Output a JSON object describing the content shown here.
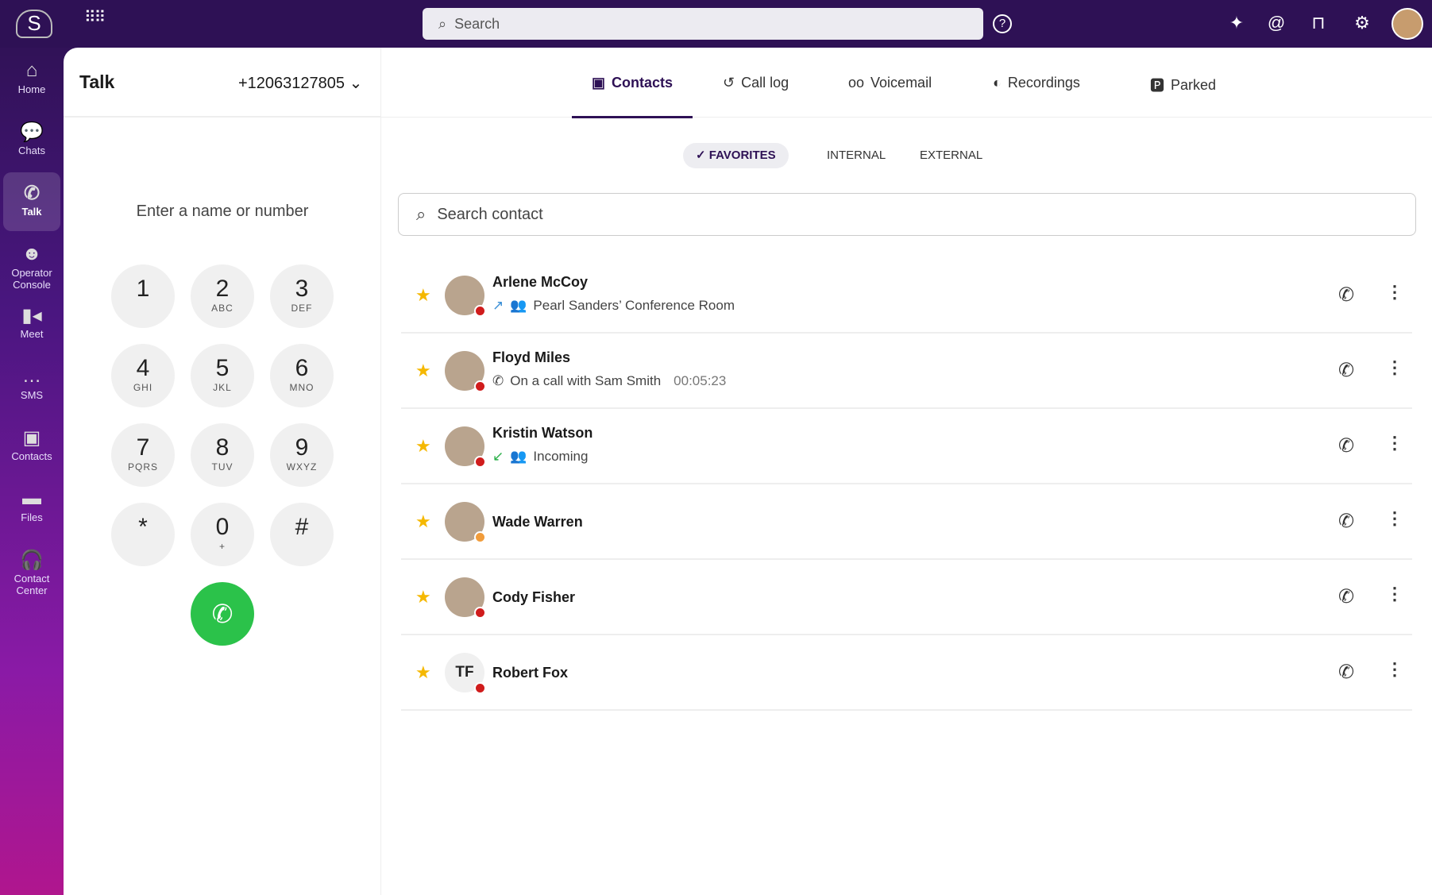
{
  "topbar": {
    "search_placeholder": "Search",
    "help": "?"
  },
  "sidebar": {
    "items": [
      {
        "label": "Home",
        "icon": "home-icon"
      },
      {
        "label": "Chats",
        "icon": "chat-icon"
      },
      {
        "label": "Talk",
        "icon": "phone-icon",
        "active": true
      },
      {
        "label": "Operator Console",
        "icon": "operator-icon"
      },
      {
        "label": "Meet",
        "icon": "video-icon"
      },
      {
        "label": "SMS",
        "icon": "sms-icon"
      },
      {
        "label": "Contacts",
        "icon": "contacts-icon"
      },
      {
        "label": "Files",
        "icon": "folder-icon"
      },
      {
        "label": "Contact Center",
        "icon": "headset-icon"
      }
    ]
  },
  "dialer": {
    "title": "Talk",
    "number": "+12063127805",
    "placeholder": "Enter a name or number",
    "keys": [
      {
        "n": "1",
        "l": ""
      },
      {
        "n": "2",
        "l": "ABC"
      },
      {
        "n": "3",
        "l": "DEF"
      },
      {
        "n": "4",
        "l": "GHI"
      },
      {
        "n": "5",
        "l": "JKL"
      },
      {
        "n": "6",
        "l": "MNO"
      },
      {
        "n": "7",
        "l": "PQRS"
      },
      {
        "n": "8",
        "l": "TUV"
      },
      {
        "n": "9",
        "l": "WXYZ"
      },
      {
        "n": "*",
        "l": ""
      },
      {
        "n": "0",
        "l": "+"
      },
      {
        "n": "#",
        "l": ""
      }
    ]
  },
  "tabs": [
    {
      "label": "Contacts",
      "active": true
    },
    {
      "label": "Call log"
    },
    {
      "label": "Voicemail"
    },
    {
      "label": "Recordings"
    },
    {
      "label": "Parked"
    }
  ],
  "filters": [
    {
      "label": "FAVORITES",
      "active": true
    },
    {
      "label": "INTERNAL"
    },
    {
      "label": "EXTERNAL"
    }
  ],
  "contact_search": {
    "placeholder": "Search contact"
  },
  "contacts": [
    {
      "name": "Arlene McCoy",
      "status": "dnd",
      "sub": "Pearl Sanders’ Conference Room",
      "direction": "outgoing"
    },
    {
      "name": "Floyd Miles",
      "status": "dnd",
      "sub": "On a call with Sam Smith",
      "time": "00:05:23"
    },
    {
      "name": "Kristin Watson",
      "status": "dnd",
      "sub": "Incoming",
      "direction": "incoming"
    },
    {
      "name": "Wade Warren",
      "status": "away"
    },
    {
      "name": "Cody Fisher",
      "status": "busy"
    },
    {
      "name": "Robert Fox",
      "status": "dnd",
      "initials": "TF"
    }
  ],
  "colors": {
    "brand": "#2e1155",
    "call": "#2bc24a",
    "star": "#f5b800",
    "dnd": "#d01c1c"
  }
}
